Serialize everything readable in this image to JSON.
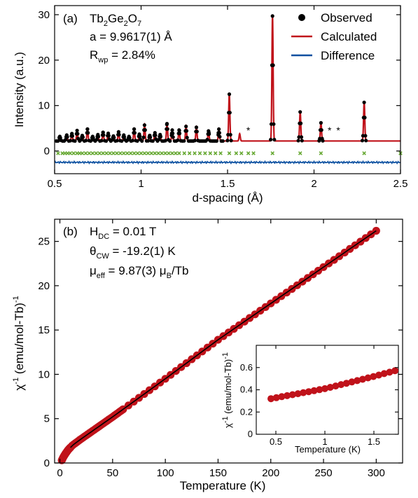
{
  "chart_data": [
    {
      "type": "line",
      "panel_label": "(a)",
      "annotations": {
        "compound": {
          "main": "Tb",
          "s1": "2",
          "mid": "Ge",
          "s2": "2",
          "end": "O",
          "s3": "7"
        },
        "lattice": "a = 9.9617(1) Å",
        "rwp": {
          "pre": "R",
          "sub": "wp",
          "post": " = 2.84%"
        }
      },
      "xlabel": "d-spacing (Å)",
      "ylabel": "Intensity (a.u.)",
      "xlim": [
        0.5,
        2.5
      ],
      "ylim": [
        -5,
        32
      ],
      "xticks": [
        0.5,
        1.0,
        1.5,
        2.0,
        2.5
      ],
      "xtick_labels": [
        "0.5",
        "1",
        "1.5",
        "2",
        "2.5"
      ],
      "yticks": [
        0,
        10,
        20,
        30
      ],
      "legend_position": "top-right",
      "series": [
        {
          "name": "Observed",
          "marker": "circle",
          "color": "#000000"
        },
        {
          "name": "Calculated",
          "color": "#c0121a"
        },
        {
          "name": "Difference",
          "color": "#0a4fa0"
        }
      ],
      "baseline": 2.2,
      "difference_offset": -2.5,
      "tick_marks_y": -0.5,
      "tick_marks_color": "#66a832",
      "impurity_marker": "*",
      "impurity_positions": [
        1.62,
        2.09,
        2.14
      ],
      "peaks": [
        {
          "d": 0.53,
          "h": 1.0
        },
        {
          "d": 0.57,
          "h": 1.3
        },
        {
          "d": 0.6,
          "h": 1.6
        },
        {
          "d": 0.63,
          "h": 2.3
        },
        {
          "d": 0.66,
          "h": 1.2
        },
        {
          "d": 0.69,
          "h": 2.6
        },
        {
          "d": 0.72,
          "h": 1.0
        },
        {
          "d": 0.75,
          "h": 1.4
        },
        {
          "d": 0.78,
          "h": 1.9
        },
        {
          "d": 0.81,
          "h": 1.7
        },
        {
          "d": 0.84,
          "h": 1.1
        },
        {
          "d": 0.87,
          "h": 2.0
        },
        {
          "d": 0.9,
          "h": 1.3
        },
        {
          "d": 0.93,
          "h": 1.0
        },
        {
          "d": 0.96,
          "h": 2.6
        },
        {
          "d": 0.99,
          "h": 1.5
        },
        {
          "d": 1.02,
          "h": 3.5
        },
        {
          "d": 1.05,
          "h": 1.2
        },
        {
          "d": 1.08,
          "h": 1.8
        },
        {
          "d": 1.11,
          "h": 1.4
        },
        {
          "d": 1.15,
          "h": 3.8
        },
        {
          "d": 1.18,
          "h": 2.4
        },
        {
          "d": 1.22,
          "h": 2.4
        },
        {
          "d": 1.26,
          "h": 3.2
        },
        {
          "d": 1.32,
          "h": 3.0
        },
        {
          "d": 1.39,
          "h": 2.2
        },
        {
          "d": 1.45,
          "h": 2.6
        },
        {
          "d": 1.51,
          "h": 10.3
        },
        {
          "d": 1.57,
          "h": 1.6
        },
        {
          "d": 1.76,
          "h": 27.5
        },
        {
          "d": 1.92,
          "h": 6.4
        },
        {
          "d": 2.04,
          "h": 4.0
        },
        {
          "d": 2.29,
          "h": 8.5
        }
      ],
      "reflections": [
        0.52,
        0.545,
        0.56,
        0.575,
        0.59,
        0.61,
        0.63,
        0.645,
        0.66,
        0.68,
        0.7,
        0.72,
        0.74,
        0.76,
        0.78,
        0.8,
        0.82,
        0.84,
        0.86,
        0.88,
        0.9,
        0.92,
        0.94,
        0.96,
        0.98,
        1.0,
        1.02,
        1.04,
        1.06,
        1.08,
        1.1,
        1.12,
        1.14,
        1.16,
        1.18,
        1.2,
        1.22,
        1.25,
        1.28,
        1.31,
        1.34,
        1.37,
        1.4,
        1.43,
        1.46,
        1.51,
        1.55,
        1.58,
        1.62,
        1.65,
        1.76,
        1.92,
        2.04,
        2.29,
        2.5
      ]
    },
    {
      "type": "scatter",
      "panel_label": "(b)",
      "annotations": {
        "hdc": {
          "pre": "H",
          "sub": "DC",
          "post": " = 0.01 T"
        },
        "theta": {
          "pre": "θ",
          "sub": "CW",
          "post": " = -19.2(1) K"
        },
        "mu": {
          "pre": "μ",
          "sub": "eff",
          "mid": " = 9.87(3) μ",
          "sub2": "B",
          "post": "/Tb"
        }
      },
      "xlabel": "Temperature (K)",
      "ylabel": {
        "pre": "χ",
        "sup": "-1",
        "post": " (emu/mol-Tb)",
        "sup2": "-1"
      },
      "xlim": [
        -5,
        325
      ],
      "ylim": [
        0,
        27.5
      ],
      "xticks": [
        0,
        50,
        100,
        150,
        200,
        250,
        300
      ],
      "yticks": [
        0,
        5,
        10,
        15,
        20,
        25
      ],
      "series": [
        {
          "name": "chi_inverse",
          "color": "#c0121a",
          "x": [
            1.8,
            3,
            5,
            8,
            12,
            20,
            50,
            100,
            150,
            200,
            250,
            300
          ],
          "y": [
            0.3,
            0.6,
            1.0,
            1.5,
            2.0,
            2.7,
            5.2,
            9.5,
            13.9,
            18.0,
            22.1,
            26.2
          ]
        },
        {
          "name": "Curie-Weiss fit",
          "color": "#000000",
          "x_range": [
            10,
            300
          ]
        }
      ],
      "inset": {
        "xlabel": "Temperature (K)",
        "ylabel": {
          "pre": "χ",
          "sup": "-1",
          "post": " (emu/mol-Tb)",
          "sup2": "-1"
        },
        "xlim": [
          0.3,
          1.75
        ],
        "ylim": [
          0,
          0.8
        ],
        "xticks": [
          0.5,
          1.0,
          1.5
        ],
        "xtick_labels": [
          "0.5",
          "1",
          "1.5"
        ],
        "yticks": [
          0,
          0.2,
          0.4,
          0.6
        ],
        "ytick_labels": [
          "0",
          "0.2",
          "0.4",
          "0.6"
        ],
        "x": [
          0.45,
          1.0,
          1.5,
          1.75
        ],
        "y": [
          0.32,
          0.41,
          0.52,
          0.58
        ]
      }
    }
  ]
}
